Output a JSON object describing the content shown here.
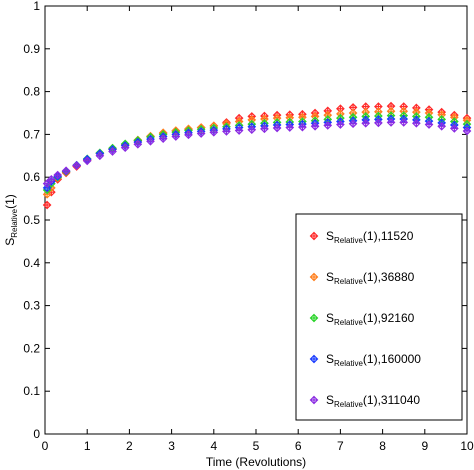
{
  "chart_data": {
    "type": "scatter",
    "xlabel": "Time (Revolutions)",
    "ylabel": {
      "main": "S",
      "sub": "Relative",
      "suffix": "(1)"
    },
    "xlim": [
      0,
      10
    ],
    "ylim": [
      0,
      1
    ],
    "xticks": [
      "0",
      "1",
      "2",
      "3",
      "4",
      "5",
      "6",
      "7",
      "8",
      "9",
      "10"
    ],
    "yticks": [
      "0",
      "0.1",
      "0.2",
      "0.3",
      "0.4",
      "0.5",
      "0.6",
      "0.7",
      "0.8",
      "0.9",
      "1"
    ],
    "grid": false,
    "legend_position": "bottom-right",
    "marker": "diamond-cross",
    "series": [
      {
        "name_main": "S",
        "name_sub": "Relative",
        "name_suffix": "(1),11520",
        "color": "#ff2a2a",
        "points": [
          [
            0.05,
            0.535
          ],
          [
            0.15,
            0.565
          ],
          [
            0.3,
            0.595
          ],
          [
            0.5,
            0.61
          ],
          [
            0.75,
            0.625
          ],
          [
            1.0,
            0.64
          ],
          [
            1.3,
            0.655
          ],
          [
            1.6,
            0.665
          ],
          [
            1.9,
            0.675
          ],
          [
            2.2,
            0.685
          ],
          [
            2.5,
            0.695
          ],
          [
            2.8,
            0.703
          ],
          [
            3.1,
            0.708
          ],
          [
            3.4,
            0.712
          ],
          [
            3.7,
            0.716
          ],
          [
            4.0,
            0.72
          ],
          [
            4.3,
            0.728
          ],
          [
            4.6,
            0.738
          ],
          [
            4.9,
            0.742
          ],
          [
            5.2,
            0.743
          ],
          [
            5.5,
            0.745
          ],
          [
            5.8,
            0.746
          ],
          [
            6.1,
            0.747
          ],
          [
            6.4,
            0.75
          ],
          [
            6.7,
            0.755
          ],
          [
            7.0,
            0.76
          ],
          [
            7.3,
            0.763
          ],
          [
            7.6,
            0.765
          ],
          [
            7.9,
            0.765
          ],
          [
            8.2,
            0.766
          ],
          [
            8.5,
            0.765
          ],
          [
            8.8,
            0.762
          ],
          [
            9.1,
            0.758
          ],
          [
            9.4,
            0.752
          ],
          [
            9.7,
            0.745
          ],
          [
            10.0,
            0.738
          ]
        ]
      },
      {
        "name_main": "S",
        "name_sub": "Relative",
        "name_suffix": "(1),36880",
        "color": "#ff7f1e",
        "points": [
          [
            0.05,
            0.56
          ],
          [
            0.15,
            0.575
          ],
          [
            0.3,
            0.598
          ],
          [
            0.5,
            0.612
          ],
          [
            0.75,
            0.627
          ],
          [
            1.0,
            0.642
          ],
          [
            1.3,
            0.656
          ],
          [
            1.6,
            0.667
          ],
          [
            1.9,
            0.677
          ],
          [
            2.2,
            0.687
          ],
          [
            2.5,
            0.696
          ],
          [
            2.8,
            0.704
          ],
          [
            3.1,
            0.709
          ],
          [
            3.4,
            0.713
          ],
          [
            3.7,
            0.716
          ],
          [
            4.0,
            0.72
          ],
          [
            4.3,
            0.725
          ],
          [
            4.6,
            0.73
          ],
          [
            4.9,
            0.734
          ],
          [
            5.2,
            0.736
          ],
          [
            5.5,
            0.738
          ],
          [
            5.8,
            0.739
          ],
          [
            6.1,
            0.74
          ],
          [
            6.4,
            0.742
          ],
          [
            6.7,
            0.745
          ],
          [
            7.0,
            0.748
          ],
          [
            7.3,
            0.75
          ],
          [
            7.6,
            0.752
          ],
          [
            7.9,
            0.753
          ],
          [
            8.2,
            0.754
          ],
          [
            8.5,
            0.754
          ],
          [
            8.8,
            0.752
          ],
          [
            9.1,
            0.75
          ],
          [
            9.4,
            0.746
          ],
          [
            9.7,
            0.74
          ],
          [
            10.0,
            0.733
          ]
        ]
      },
      {
        "name_main": "S",
        "name_sub": "Relative",
        "name_suffix": "(1),92160",
        "color": "#2ad42a",
        "points": [
          [
            0.05,
            0.57
          ],
          [
            0.15,
            0.585
          ],
          [
            0.3,
            0.6
          ],
          [
            0.5,
            0.613
          ],
          [
            0.75,
            0.628
          ],
          [
            1.0,
            0.643
          ],
          [
            1.3,
            0.657
          ],
          [
            1.6,
            0.668
          ],
          [
            1.9,
            0.678
          ],
          [
            2.2,
            0.686
          ],
          [
            2.5,
            0.694
          ],
          [
            2.8,
            0.7
          ],
          [
            3.1,
            0.705
          ],
          [
            3.4,
            0.709
          ],
          [
            3.7,
            0.712
          ],
          [
            4.0,
            0.715
          ],
          [
            4.3,
            0.718
          ],
          [
            4.6,
            0.721
          ],
          [
            4.9,
            0.724
          ],
          [
            5.2,
            0.726
          ],
          [
            5.5,
            0.728
          ],
          [
            5.8,
            0.729
          ],
          [
            6.1,
            0.73
          ],
          [
            6.4,
            0.732
          ],
          [
            6.7,
            0.735
          ],
          [
            7.0,
            0.738
          ],
          [
            7.3,
            0.74
          ],
          [
            7.6,
            0.742
          ],
          [
            7.9,
            0.743
          ],
          [
            8.2,
            0.744
          ],
          [
            8.5,
            0.744
          ],
          [
            8.8,
            0.742
          ],
          [
            9.1,
            0.74
          ],
          [
            9.4,
            0.735
          ],
          [
            9.7,
            0.73
          ],
          [
            10.0,
            0.724
          ]
        ]
      },
      {
        "name_main": "S",
        "name_sub": "Relative",
        "name_suffix": "(1),160000",
        "color": "#1a3cff",
        "points": [
          [
            0.05,
            0.575
          ],
          [
            0.15,
            0.59
          ],
          [
            0.3,
            0.602
          ],
          [
            0.5,
            0.614
          ],
          [
            0.75,
            0.628
          ],
          [
            1.0,
            0.642
          ],
          [
            1.3,
            0.655
          ],
          [
            1.6,
            0.665
          ],
          [
            1.9,
            0.674
          ],
          [
            2.2,
            0.682
          ],
          [
            2.5,
            0.689
          ],
          [
            2.8,
            0.695
          ],
          [
            3.1,
            0.7
          ],
          [
            3.4,
            0.704
          ],
          [
            3.7,
            0.707
          ],
          [
            4.0,
            0.71
          ],
          [
            4.3,
            0.713
          ],
          [
            4.6,
            0.716
          ],
          [
            4.9,
            0.718
          ],
          [
            5.2,
            0.72
          ],
          [
            5.5,
            0.722
          ],
          [
            5.8,
            0.723
          ],
          [
            6.1,
            0.724
          ],
          [
            6.4,
            0.726
          ],
          [
            6.7,
            0.728
          ],
          [
            7.0,
            0.73
          ],
          [
            7.3,
            0.732
          ],
          [
            7.6,
            0.734
          ],
          [
            7.9,
            0.735
          ],
          [
            8.2,
            0.736
          ],
          [
            8.5,
            0.736
          ],
          [
            8.8,
            0.734
          ],
          [
            9.1,
            0.731
          ],
          [
            9.4,
            0.727
          ],
          [
            9.7,
            0.722
          ],
          [
            10.0,
            0.716
          ]
        ]
      },
      {
        "name_main": "S",
        "name_sub": "Relative",
        "name_suffix": "(1),311040",
        "color": "#8a2be2",
        "points": [
          [
            0.05,
            0.585
          ],
          [
            0.15,
            0.595
          ],
          [
            0.3,
            0.605
          ],
          [
            0.5,
            0.615
          ],
          [
            0.75,
            0.627
          ],
          [
            1.0,
            0.638
          ],
          [
            1.3,
            0.65
          ],
          [
            1.6,
            0.66
          ],
          [
            1.9,
            0.669
          ],
          [
            2.2,
            0.677
          ],
          [
            2.5,
            0.684
          ],
          [
            2.8,
            0.69
          ],
          [
            3.1,
            0.695
          ],
          [
            3.4,
            0.699
          ],
          [
            3.7,
            0.702
          ],
          [
            4.0,
            0.705
          ],
          [
            4.3,
            0.707
          ],
          [
            4.6,
            0.709
          ],
          [
            4.9,
            0.711
          ],
          [
            5.2,
            0.713
          ],
          [
            5.5,
            0.715
          ],
          [
            5.8,
            0.716
          ],
          [
            6.1,
            0.717
          ],
          [
            6.4,
            0.719
          ],
          [
            6.7,
            0.721
          ],
          [
            7.0,
            0.723
          ],
          [
            7.3,
            0.725
          ],
          [
            7.6,
            0.726
          ],
          [
            7.9,
            0.727
          ],
          [
            8.2,
            0.728
          ],
          [
            8.5,
            0.728
          ],
          [
            8.8,
            0.726
          ],
          [
            9.1,
            0.723
          ],
          [
            9.4,
            0.719
          ],
          [
            9.7,
            0.714
          ],
          [
            10.0,
            0.708
          ]
        ]
      }
    ]
  }
}
